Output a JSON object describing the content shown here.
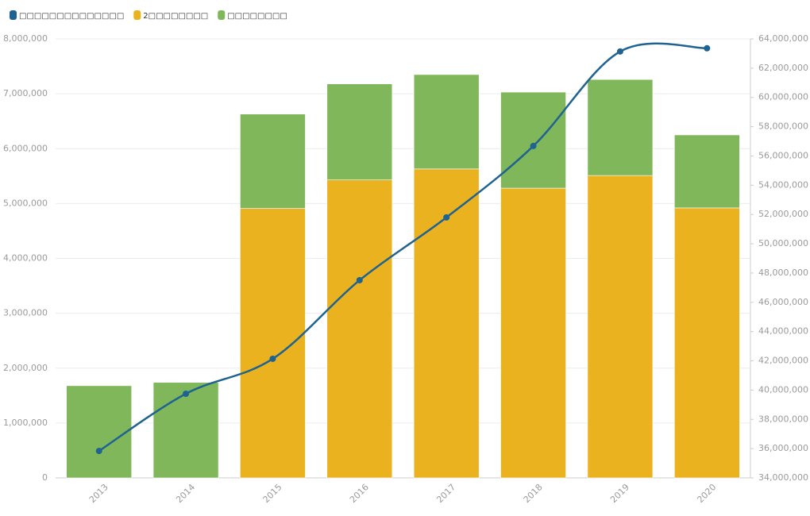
{
  "chart_data": {
    "type": "bar",
    "categories": [
      "2013",
      "2014",
      "2015",
      "2016",
      "2017",
      "2018",
      "2019",
      "2020"
    ],
    "series": [
      {
        "name": "2□□□□□□□□",
        "color": "#ebb220",
        "stack": true,
        "values": [
          0,
          0,
          4910000,
          5430000,
          5630000,
          5280000,
          5510000,
          4920000
        ]
      },
      {
        "name": "□□□□□□□□",
        "color": "#80b75a",
        "stack": true,
        "values": [
          1680000,
          1740000,
          1720000,
          1750000,
          1720000,
          1750000,
          1750000,
          1330000
        ]
      },
      {
        "name": "□□□□□□□□□□□□□□",
        "color": "#1f6391",
        "type": "line",
        "axis": "y2",
        "values": [
          35840000,
          39750000,
          42140000,
          47510000,
          51800000,
          56680000,
          63140000,
          63360000
        ]
      }
    ],
    "legend_order": [
      2,
      0,
      1
    ],
    "ylim": [
      0,
      8000000
    ],
    "yticks": [
      0,
      {
        "value": 1000000,
        "label": "1,000,000"
      },
      {
        "value": 2000000,
        "label": "2,000,000"
      },
      {
        "value": 3000000,
        "label": "3,000,000"
      },
      {
        "value": 4000000,
        "label": "4,000,000"
      },
      {
        "value": 5000000,
        "label": "5,000,000"
      },
      {
        "value": 6000000,
        "label": "6,000,000"
      },
      {
        "value": 7000000,
        "label": "7,000,000"
      },
      {
        "value": 8000000,
        "label": "8,000,000"
      }
    ],
    "y2lim": [
      34000000,
      64000000
    ],
    "y2ticks": [
      {
        "value": 34000000,
        "label": "34,000,000"
      },
      {
        "value": 36000000,
        "label": "36,000,000"
      },
      {
        "value": 38000000,
        "label": "38,000,000"
      },
      {
        "value": 40000000,
        "label": "40,000,000"
      },
      {
        "value": 42000000,
        "label": "42,000,000"
      },
      {
        "value": 44000000,
        "label": "44,000,000"
      },
      {
        "value": 46000000,
        "label": "46,000,000"
      },
      {
        "value": 48000000,
        "label": "48,000,000"
      },
      {
        "value": 50000000,
        "label": "50,000,000"
      },
      {
        "value": 52000000,
        "label": "52,000,000"
      },
      {
        "value": 54000000,
        "label": "54,000,000"
      },
      {
        "value": 56000000,
        "label": "56,000,000"
      },
      {
        "value": 58000000,
        "label": "58,000,000"
      },
      {
        "value": 60000000,
        "label": "60,000,000"
      },
      {
        "value": 62000000,
        "label": "62,000,000"
      },
      {
        "value": 64000000,
        "label": "64,000,000"
      }
    ],
    "grid": true
  }
}
